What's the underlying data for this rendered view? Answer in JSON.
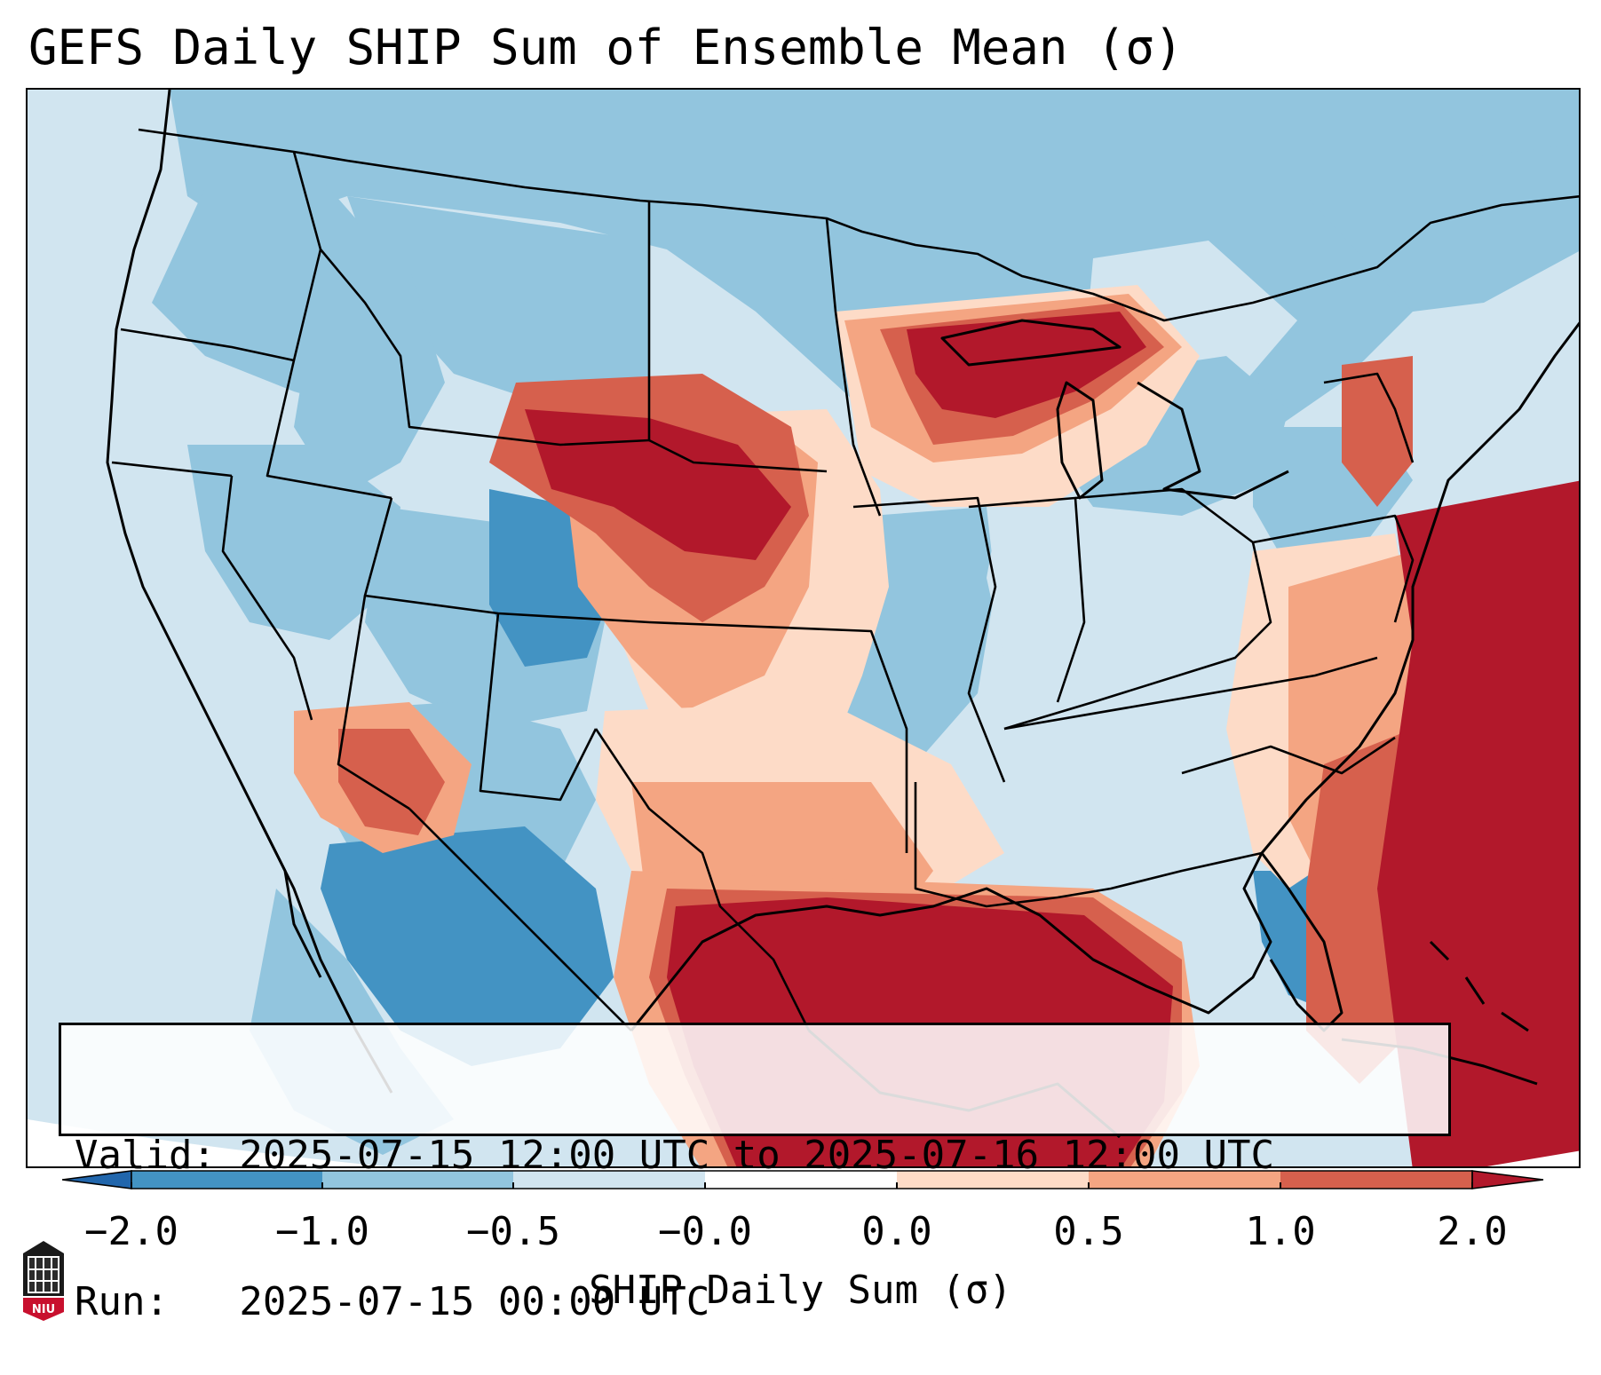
{
  "title": "GEFS Daily SHIP Sum of Ensemble Mean (σ)",
  "info": {
    "valid": "Valid: 2025-07-15 12:00 UTC to 2025-07-16 12:00 UTC",
    "run": "Run:   2025-07-15 00:00 UTC"
  },
  "colorbar": {
    "label": "SHIP Daily Sum (σ)",
    "ticks": [
      "−2.0",
      "−1.0",
      "−0.5",
      "−0.0",
      "0.0",
      "0.5",
      "1.0",
      "2.0"
    ],
    "colors": [
      "#4393c3",
      "#92c5de",
      "#d1e5f0",
      "#ffffff",
      "#fddbc7",
      "#f4a582",
      "#d6604d"
    ],
    "extend_low_color": "#2166ac",
    "extend_high_color": "#b2182b"
  },
  "logo": {
    "icon": "niu-logo-icon",
    "text": "NIU"
  }
}
